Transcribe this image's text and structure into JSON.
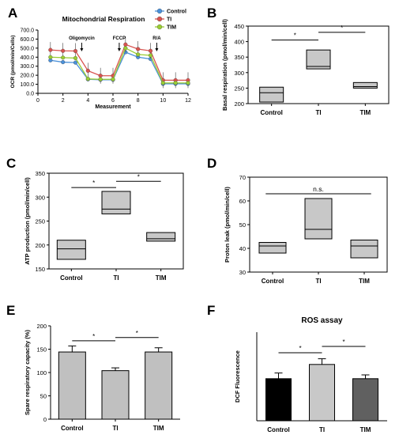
{
  "colors": {
    "control": "#4a90d9",
    "ti": "#d9534f",
    "tim": "#9acd32",
    "box_fill": "#c8c8c8",
    "bar_grey": "#c0c0c0",
    "ros_control": "#000000",
    "ros_ti": "#c8c8c8",
    "ros_tim": "#606060"
  },
  "chart_data": [
    {
      "panel": "A",
      "type": "line",
      "title": "Mitochondrial Respiration",
      "xlabel": "Measurement",
      "ylabel": "OCR (pmol/min/Cells)",
      "xlim": [
        0,
        12
      ],
      "ylim": [
        0,
        700
      ],
      "x_ticks": [
        "0",
        "2",
        "4",
        "6",
        "8",
        "10",
        "12"
      ],
      "y_ticks": [
        "0.0",
        "100.0",
        "200.0",
        "300.0",
        "400.0",
        "500.0",
        "600.0",
        "700.0"
      ],
      "x": [
        1,
        2,
        3,
        4,
        5,
        6,
        7,
        8,
        9,
        10,
        11,
        12
      ],
      "series": [
        {
          "name": "Control",
          "values": [
            365,
            345,
            340,
            155,
            150,
            150,
            455,
            400,
            380,
            105,
            105,
            105
          ]
        },
        {
          "name": "TI",
          "values": [
            480,
            470,
            468,
            250,
            195,
            195,
            540,
            490,
            470,
            145,
            145,
            145
          ]
        },
        {
          "name": "TIM",
          "values": [
            400,
            395,
            390,
            160,
            155,
            155,
            500,
            430,
            420,
            115,
            115,
            115
          ]
        }
      ],
      "annotations": [
        {
          "text": "Oligomycin",
          "x": 3.5
        },
        {
          "text": "FCCP",
          "x": 6.5
        },
        {
          "text": "R/A",
          "x": 9.5
        }
      ]
    },
    {
      "panel": "B",
      "type": "box",
      "ylabel": "Basal respiration (pmol/min/cell)",
      "ylim": [
        200,
        450
      ],
      "y_ticks": [
        "200",
        "250",
        "300",
        "350",
        "400",
        "450"
      ],
      "categories": [
        "Control",
        "TI",
        "TIM"
      ],
      "boxes": [
        {
          "low": 205,
          "median": 235,
          "high": 253
        },
        {
          "low": 312,
          "median": 320,
          "high": 373
        },
        {
          "low": 250,
          "median": 255,
          "high": 268
        }
      ],
      "significance": [
        {
          "from": 0,
          "to": 1,
          "label": "*",
          "y": 405
        },
        {
          "from": 1,
          "to": 2,
          "label": "*",
          "y": 430
        }
      ]
    },
    {
      "panel": "C",
      "type": "box",
      "ylabel": "ATP production (pmol/min/cell)",
      "ylim": [
        150,
        350
      ],
      "y_ticks": [
        "150",
        "200",
        "250",
        "300",
        "350"
      ],
      "categories": [
        "Control",
        "TI",
        "TIM"
      ],
      "boxes": [
        {
          "low": 170,
          "median": 192,
          "high": 210
        },
        {
          "low": 265,
          "median": 275,
          "high": 312
        },
        {
          "low": 208,
          "median": 213,
          "high": 226
        }
      ],
      "significance": [
        {
          "from": 0,
          "to": 1,
          "label": "*",
          "y": 320
        },
        {
          "from": 1,
          "to": 2,
          "label": "*",
          "y": 333
        }
      ]
    },
    {
      "panel": "D",
      "type": "box",
      "ylabel": "Proton leak (pmol/min/cell)",
      "ylim": [
        30,
        70
      ],
      "y_ticks": [
        "30",
        "40",
        "50",
        "60",
        "70"
      ],
      "categories": [
        "Control",
        "TI",
        "TIM"
      ],
      "boxes": [
        {
          "low": 38,
          "median": 41,
          "high": 42.5
        },
        {
          "low": 44,
          "median": 48,
          "high": 61
        },
        {
          "low": 36,
          "median": 41,
          "high": 43.5
        }
      ],
      "significance": [
        {
          "from": 0,
          "to": 2,
          "label": "n.s.",
          "y": 63
        }
      ]
    },
    {
      "panel": "E",
      "type": "bar",
      "ylabel": "Spare respiratory capacity (%)",
      "ylim": [
        0,
        200
      ],
      "y_ticks": [
        "0",
        "50",
        "100",
        "150",
        "200"
      ],
      "categories": [
        "Control",
        "TI",
        "TIM"
      ],
      "values": [
        144,
        104,
        144
      ],
      "errors": [
        13,
        6,
        9
      ],
      "significance": [
        {
          "from": 0,
          "to": 1,
          "label": "*",
          "y": 168
        },
        {
          "from": 1,
          "to": 2,
          "label": "*",
          "y": 175
        }
      ]
    },
    {
      "panel": "F",
      "type": "bar",
      "title": "ROS assay",
      "ylabel": "DCF Fluorescence",
      "ylim": [
        0,
        2.8
      ],
      "categories": [
        "Control",
        "TI",
        "TIM"
      ],
      "values": [
        1.33,
        1.78,
        1.33
      ],
      "errors": [
        0.18,
        0.18,
        0.12
      ],
      "significance": [
        {
          "from": 0,
          "to": 1,
          "label": "*",
          "y": 2.15
        },
        {
          "from": 1,
          "to": 2,
          "label": "*",
          "y": 2.35
        }
      ]
    }
  ]
}
